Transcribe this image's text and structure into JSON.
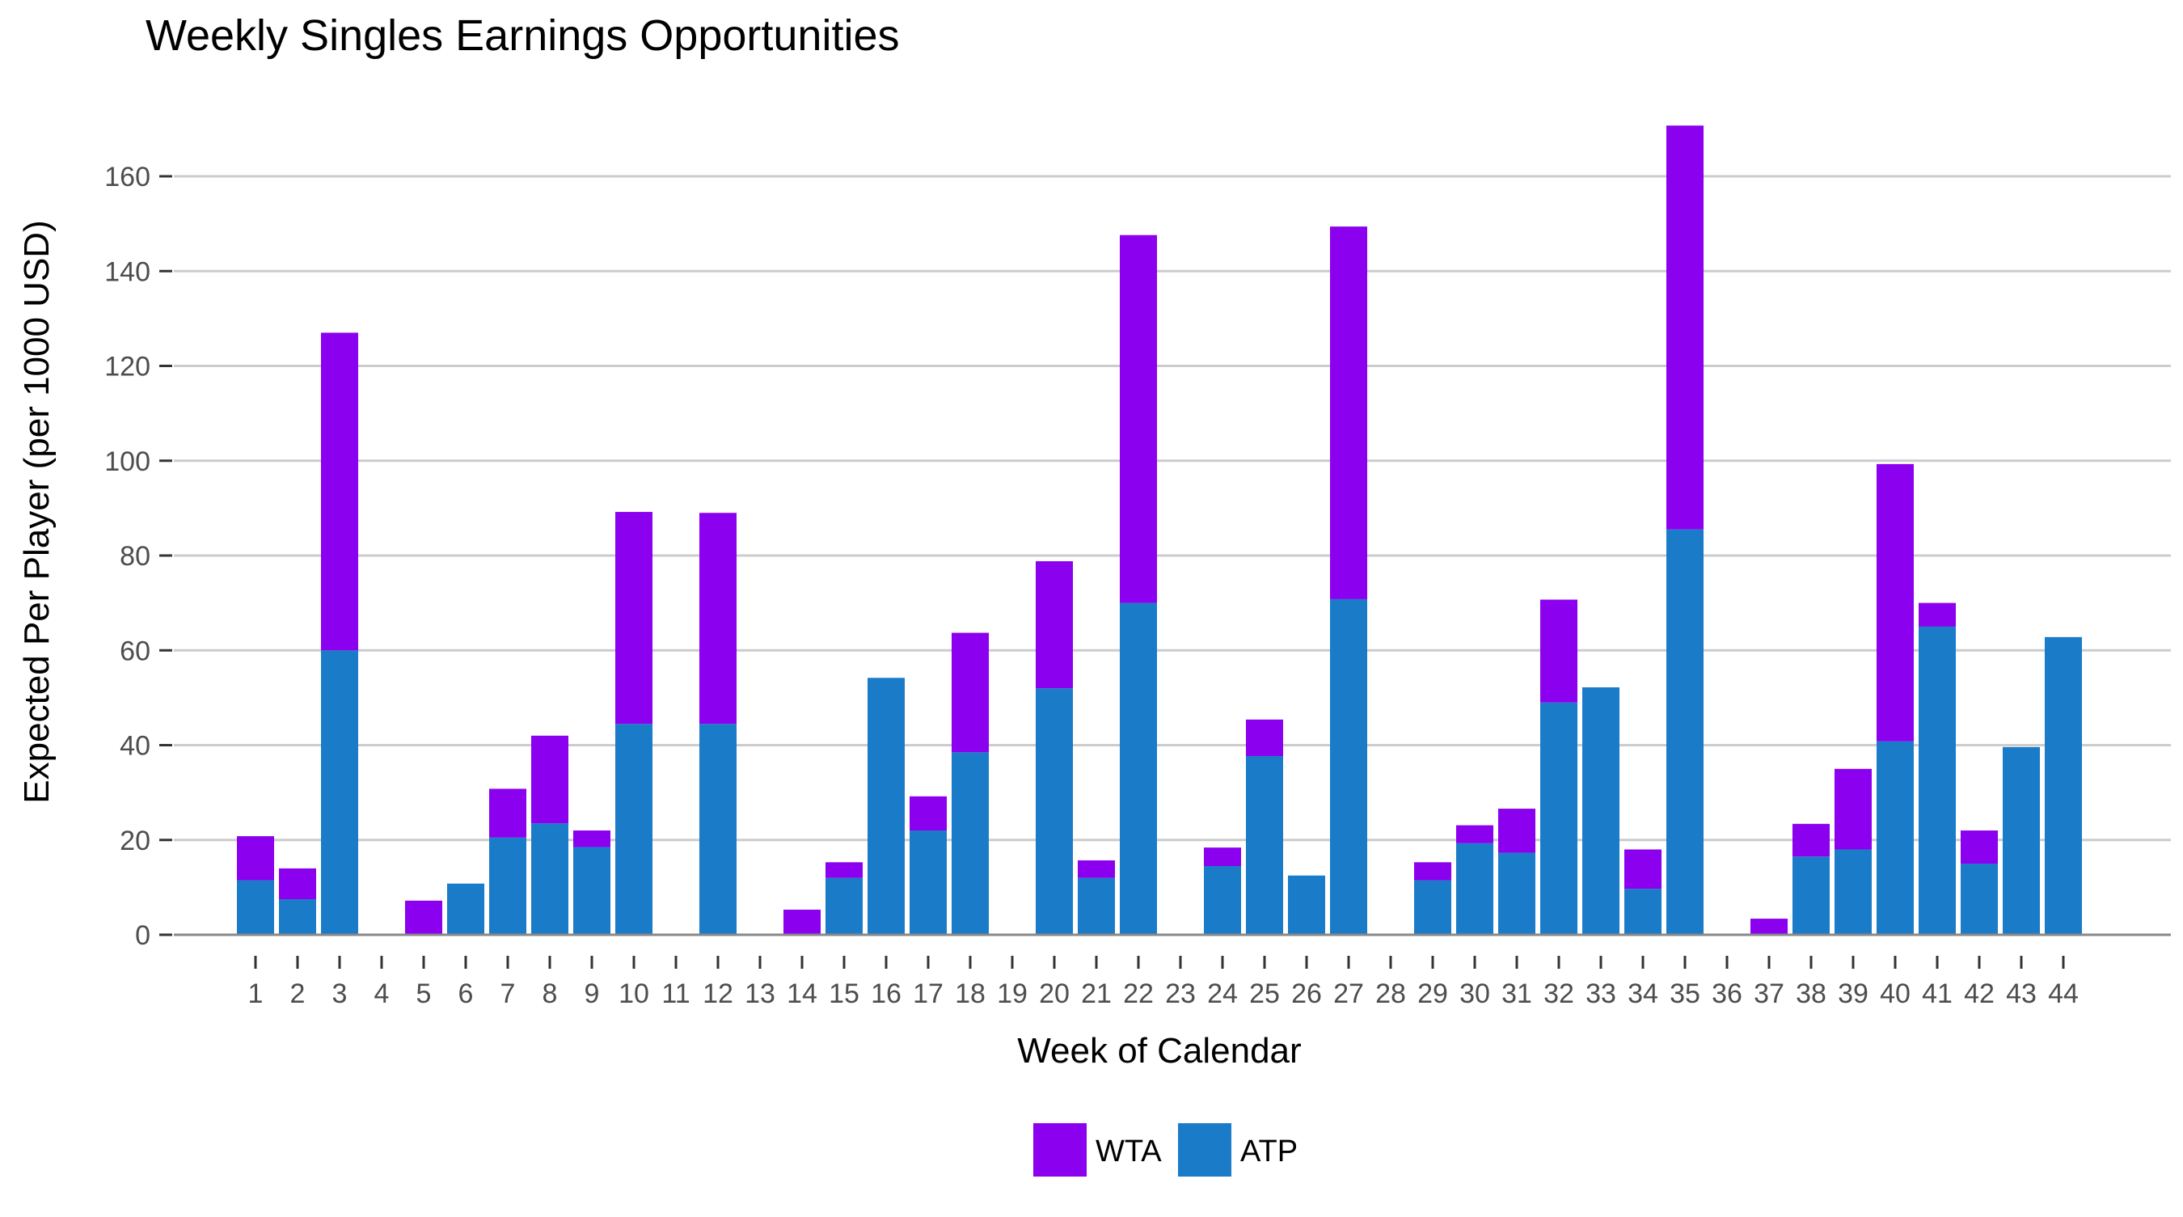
{
  "chart_data": {
    "type": "bar",
    "stacked": true,
    "title": "Weekly Singles Earnings Opportunities",
    "xlabel": "Week of Calendar",
    "ylabel": "Expected Per Player (per 1000 USD)",
    "ylim": [
      0,
      175
    ],
    "yticks": [
      0,
      20,
      40,
      60,
      80,
      100,
      120,
      140,
      160
    ],
    "grid": true,
    "legend_position": "bottom",
    "categories": [
      "1",
      "2",
      "3",
      "4",
      "5",
      "6",
      "7",
      "8",
      "9",
      "10",
      "11",
      "12",
      "13",
      "14",
      "15",
      "16",
      "17",
      "18",
      "19",
      "20",
      "21",
      "22",
      "23",
      "24",
      "25",
      "26",
      "27",
      "28",
      "29",
      "30",
      "31",
      "32",
      "33",
      "34",
      "35",
      "36",
      "37",
      "38",
      "39",
      "40",
      "41",
      "42",
      "43",
      "44"
    ],
    "series": [
      {
        "name": "ATP",
        "color": "#1a7cc8",
        "values": [
          11.5,
          7.5,
          60,
          0,
          0,
          10.8,
          20.5,
          23.5,
          18.5,
          44.5,
          0,
          44.5,
          0,
          0,
          12,
          54.2,
          22,
          38.5,
          0,
          52,
          12,
          70,
          0,
          14.5,
          37.7,
          12.5,
          70.8,
          0,
          11.5,
          19.3,
          17.3,
          49,
          52.2,
          9.7,
          85.5,
          0,
          0,
          16.5,
          18,
          40.8,
          65,
          15,
          39.6,
          62.8
        ]
      },
      {
        "name": "WTA",
        "color": "#8b00ee",
        "values": [
          9.3,
          6.5,
          67,
          0,
          7.2,
          0,
          10.3,
          18.5,
          3.5,
          44.7,
          0,
          44.5,
          0,
          5.3,
          3.3,
          0,
          7.2,
          25.2,
          0,
          26.8,
          3.7,
          77.6,
          0,
          3.9,
          7.7,
          0,
          78.6,
          0,
          3.8,
          3.8,
          9.3,
          21.7,
          0,
          8.3,
          85.2,
          0,
          3.4,
          6.9,
          17,
          58.5,
          5,
          7,
          0,
          0
        ]
      }
    ],
    "legend_order": [
      "WTA",
      "ATP"
    ]
  }
}
